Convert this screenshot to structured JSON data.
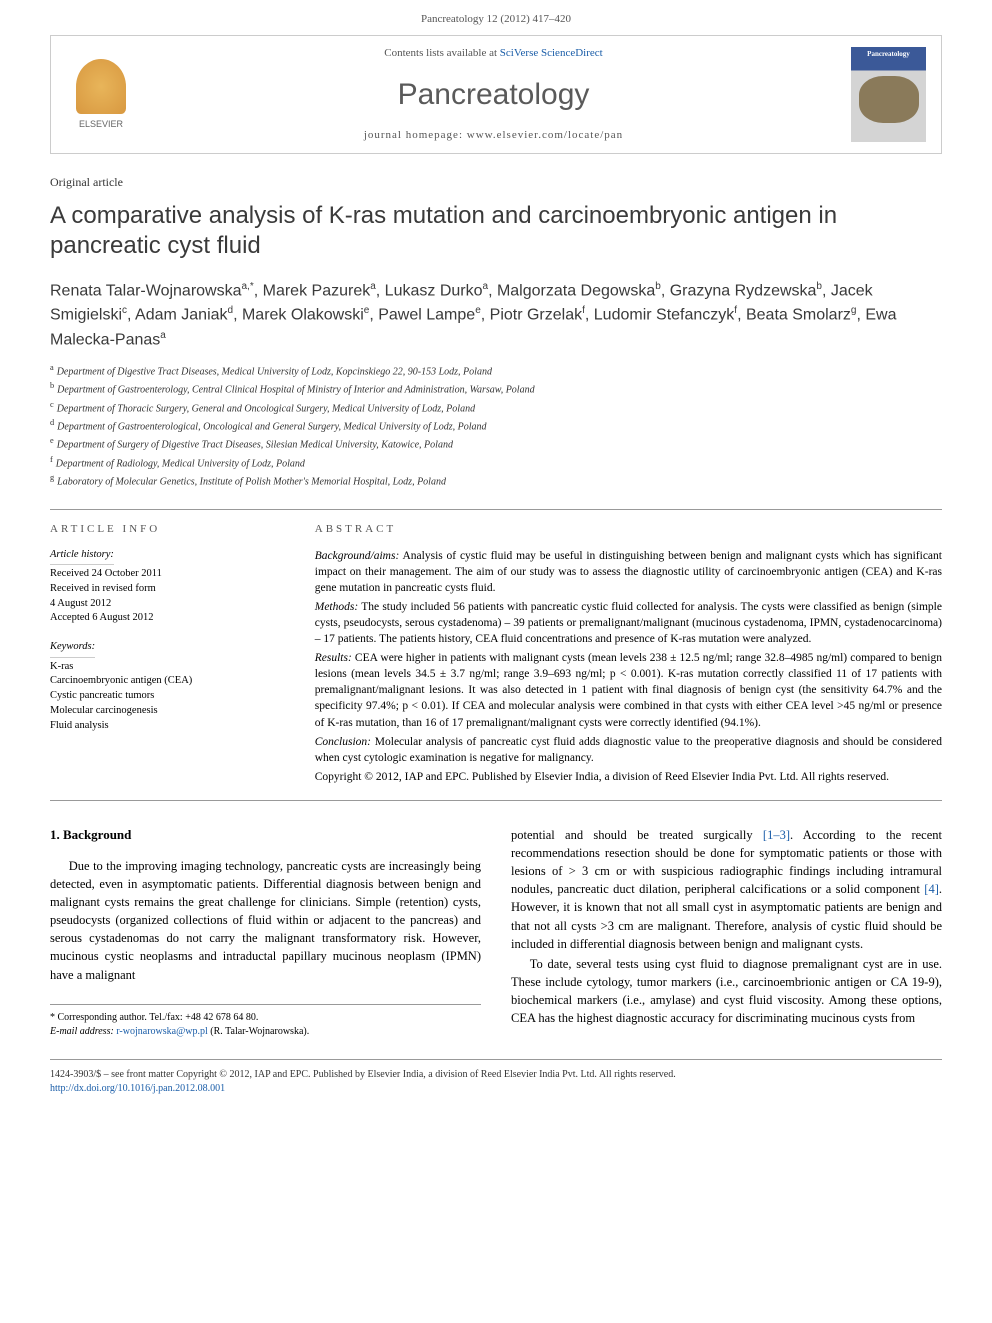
{
  "citation": "Pancreatology 12 (2012) 417–420",
  "header": {
    "contents_prefix": "Contents lists available at ",
    "contents_link": "SciVerse ScienceDirect",
    "journal_title": "Pancreatology",
    "homepage_prefix": "journal homepage: ",
    "homepage_url": "www.elsevier.com/locate/pan",
    "elsevier_label": "ELSEVIER",
    "cover_label": "Pancreatology"
  },
  "article": {
    "type": "Original article",
    "title": "A comparative analysis of K-ras mutation and carcinoembryonic antigen in pancreatic cyst fluid",
    "authors_html": "Renata Talar-Wojnarowska<sup>a,*</sup>, Marek Pazurek<sup>a</sup>, Lukasz Durko<sup>a</sup>, Malgorzata Degowska<sup>b</sup>, Grazyna Rydzewska<sup>b</sup>, Jacek Smigielski<sup>c</sup>, Adam Janiak<sup>d</sup>, Marek Olakowski<sup>e</sup>, Pawel Lampe<sup>e</sup>, Piotr Grzelak<sup>f</sup>, Ludomir Stefanczyk<sup>f</sup>, Beata Smolarz<sup>g</sup>, Ewa Malecka-Panas<sup>a</sup>",
    "affiliations": [
      {
        "sup": "a",
        "text": "Department of Digestive Tract Diseases, Medical University of Lodz, Kopcinskiego 22, 90-153 Lodz, Poland"
      },
      {
        "sup": "b",
        "text": "Department of Gastroenterology, Central Clinical Hospital of Ministry of Interior and Administration, Warsaw, Poland"
      },
      {
        "sup": "c",
        "text": "Department of Thoracic Surgery, General and Oncological Surgery, Medical University of Lodz, Poland"
      },
      {
        "sup": "d",
        "text": "Department of Gastroenterological, Oncological and General Surgery, Medical University of Lodz, Poland"
      },
      {
        "sup": "e",
        "text": "Department of Surgery of Digestive Tract Diseases, Silesian Medical University, Katowice, Poland"
      },
      {
        "sup": "f",
        "text": "Department of Radiology, Medical University of Lodz, Poland"
      },
      {
        "sup": "g",
        "text": "Laboratory of Molecular Genetics, Institute of Polish Mother's Memorial Hospital, Lodz, Poland"
      }
    ]
  },
  "article_info": {
    "heading": "ARTICLE INFO",
    "history_label": "Article history:",
    "history": [
      "Received 24 October 2011",
      "Received in revised form",
      "4 August 2012",
      "Accepted 6 August 2012"
    ],
    "keywords_label": "Keywords:",
    "keywords": [
      "K-ras",
      "Carcinoembryonic antigen (CEA)",
      "Cystic pancreatic tumors",
      "Molecular carcinogenesis",
      "Fluid analysis"
    ]
  },
  "abstract": {
    "heading": "ABSTRACT",
    "background_label": "Background/aims:",
    "background": "Analysis of cystic fluid may be useful in distinguishing between benign and malignant cysts which has significant impact on their management. The aim of our study was to assess the diagnostic utility of carcinoembryonic antigen (CEA) and K-ras gene mutation in pancreatic cysts fluid.",
    "methods_label": "Methods:",
    "methods": "The study included 56 patients with pancreatic cystic fluid collected for analysis. The cysts were classified as benign (simple cysts, pseudocysts, serous cystadenoma) – 39 patients or premalignant/malignant (mucinous cystadenoma, IPMN, cystadenocarcinoma) – 17 patients. The patients history, CEA fluid concentrations and presence of K-ras mutation were analyzed.",
    "results_label": "Results:",
    "results": "CEA were higher in patients with malignant cysts (mean levels 238 ± 12.5 ng/ml; range 32.8–4985 ng/ml) compared to benign lesions (mean levels 34.5 ± 3.7 ng/ml; range 3.9–693 ng/ml; p < 0.001). K-ras mutation correctly classified 11 of 17 patients with premalignant/malignant lesions. It was also detected in 1 patient with final diagnosis of benign cyst (the sensitivity 64.7% and the specificity 97.4%; p < 0.01). If CEA and molecular analysis were combined in that cysts with either CEA level >45 ng/ml or presence of K-ras mutation, than 16 of 17 premalignant/malignant cysts were correctly identified (94.1%).",
    "conclusion_label": "Conclusion:",
    "conclusion": "Molecular analysis of pancreatic cyst fluid adds diagnostic value to the preoperative diagnosis and should be considered when cyst cytologic examination is negative for malignancy.",
    "copyright": "Copyright © 2012, IAP and EPC. Published by Elsevier India, a division of Reed Elsevier India Pvt. Ltd. All rights reserved."
  },
  "body": {
    "section1_heading": "1. Background",
    "col1_p1": "Due to the improving imaging technology, pancreatic cysts are increasingly being detected, even in asymptomatic patients. Differential diagnosis between benign and malignant cysts remains the great challenge for clinicians. Simple (retention) cysts, pseudocysts (organized collections of fluid within or adjacent to the pancreas) and serous cystadenomas do not carry the malignant transformatory risk. However, mucinous cystic neoplasms and intraductal papillary mucinous neoplasm (IPMN) have a malignant",
    "col2_p1a": "potential and should be treated surgically ",
    "col2_ref1": "[1–3]",
    "col2_p1b": ". According to the recent recommendations resection should be done for symptomatic patients or those with lesions of > 3 cm or with suspicious radiographic findings including intramural nodules, pancreatic duct dilation, peripheral calcifications or a solid component ",
    "col2_ref2": "[4]",
    "col2_p1c": ". However, it is known that not all small cyst in asymptomatic patients are benign and that not all cysts >3 cm are malignant. Therefore, analysis of cystic fluid should be included in differential diagnosis between benign and malignant cysts.",
    "col2_p2": "To date, several tests using cyst fluid to diagnose premalignant cyst are in use. These include cytology, tumor markers (i.e., carcinoembrionic antigen or CA 19-9), biochemical markers (i.e., amylase) and cyst fluid viscosity. Among these options, CEA has the highest diagnostic accuracy for discriminating mucinous cysts from"
  },
  "corresponding": {
    "line1": "* Corresponding author. Tel./fax: +48 42 678 64 80.",
    "email_label": "E-mail address: ",
    "email": "r-wojnarowska@wp.pl",
    "email_suffix": " (R. Talar-Wojnarowska)."
  },
  "footer": {
    "line1": "1424-3903/$ – see front matter Copyright © 2012, IAP and EPC. Published by Elsevier India, a division of Reed Elsevier India Pvt. Ltd. All rights reserved.",
    "doi": "http://dx.doi.org/10.1016/j.pan.2012.08.001"
  }
}
